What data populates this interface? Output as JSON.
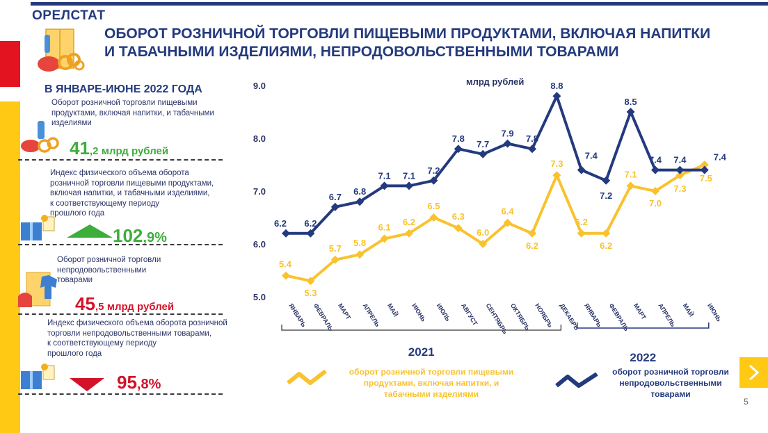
{
  "header": {
    "brand": "ОРЕЛСТАТ",
    "title_line1": "ОБОРОТ РОЗНИЧНОЙ ТОРГОВЛИ ПИЩЕВЫМИ ПРОДУКТАМИ, ВКЛЮЧАЯ НАПИТКИ",
    "title_line2": "И ТАБАЧНЫМИ ИЗДЕЛИЯМИ, НЕПРОДОВОЛЬСТВЕННЫМИ ТОВАРАМИ"
  },
  "sidebar": {
    "period": "В ЯНВАРЕ-ИЮНЕ  2022 ГОДА",
    "food_desc": [
      "Оборот розничной торговли  пищевыми",
      "продуктами, включая напитки, и табачными",
      "изделиями"
    ],
    "food_value_int": "41",
    "food_value_dec": ",2",
    "food_unit": "млрд рублей",
    "food_index_desc": [
      "Индекс физического объема оборота",
      "розничной торговли пищевыми продуктами,",
      "включая напитки, и табачными изделиями,",
      "к соответствующему периоду",
      "прошлого года"
    ],
    "food_index_int": "102",
    "food_index_dec": ",9%",
    "nonfood_desc": [
      "Оборот розничной торговли",
      "непродовольственными",
      "товарами"
    ],
    "nonfood_value_int": "45",
    "nonfood_value_dec": ",5",
    "nonfood_unit": "млрд рублей",
    "nonfood_index_desc": [
      "Индекс физического объема оборота розничной",
      "торговли непродовольственными товарами,",
      "к соответствующему периоду",
      "прошлого года"
    ],
    "nonfood_index_int": "95",
    "nonfood_index_dec": ",8%"
  },
  "chart_data": {
    "type": "line",
    "title": "",
    "ylabel": "млрд рублей",
    "ylim": [
      5.0,
      9.0
    ],
    "yticks": [
      "5.0",
      "6.0",
      "7.0",
      "8.0",
      "9.0"
    ],
    "categories": [
      "январь",
      "февраль",
      "март",
      "апрель",
      "май",
      "июнь",
      "июль",
      "август",
      "сентябрь",
      "октябрь",
      "ноябрь",
      "декабрь",
      "январь",
      "февраль",
      "март",
      "апрель",
      "май",
      "июнь"
    ],
    "year_groups": [
      {
        "label": "2021",
        "count": 12
      },
      {
        "label": "2022",
        "count": 6
      }
    ],
    "series": [
      {
        "name": "оборот розничной торговли пищевыми продуктами, включая напитки, и табачными изделиями",
        "color": "#f9c22e",
        "values": [
          5.4,
          5.3,
          5.7,
          5.8,
          6.1,
          6.2,
          6.5,
          6.3,
          6.0,
          6.4,
          6.2,
          7.3,
          6.2,
          6.2,
          7.1,
          7.0,
          7.3,
          7.5
        ]
      },
      {
        "name": "оборот розничной торговли непродовольственными товарами",
        "color": "#243a7e",
        "values": [
          6.2,
          6.2,
          6.7,
          6.8,
          7.1,
          7.1,
          7.2,
          7.8,
          7.7,
          7.9,
          7.8,
          8.8,
          7.4,
          7.2,
          8.5,
          7.4,
          7.4,
          7.4
        ]
      }
    ],
    "legend": [
      {
        "lines": [
          "оборот розничной торговли пищевыми",
          "продуктами, включая напитки, и",
          "табачными изделиями"
        ],
        "color": "#f9c22e"
      },
      {
        "lines": [
          "оборот розничной торговли",
          "непродовольственными",
          "товарами"
        ],
        "color": "#243a7e"
      }
    ]
  },
  "footer": {
    "page_number": "5",
    "next_icon": "chevron-right-icon"
  }
}
